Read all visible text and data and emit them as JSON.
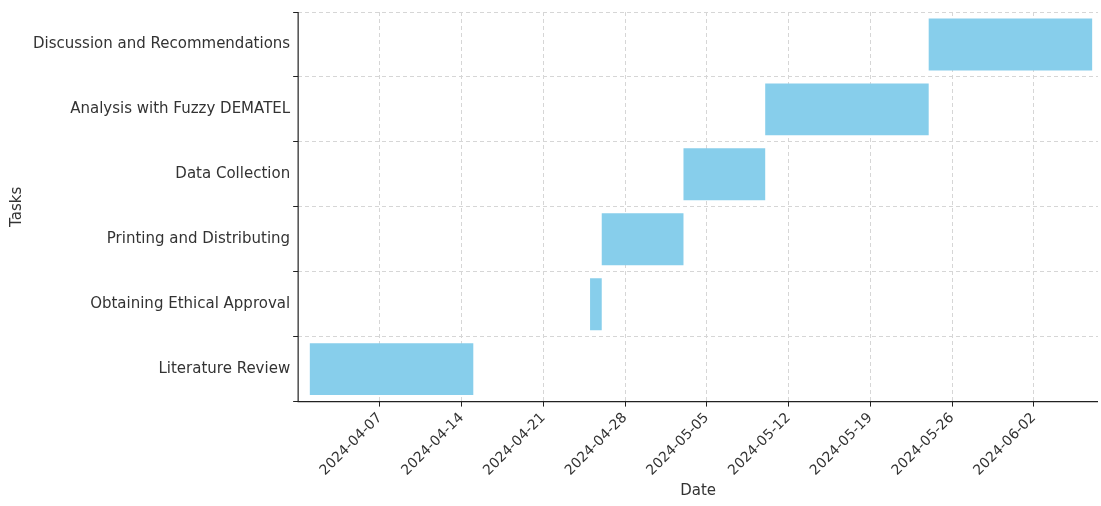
{
  "chart_data": {
    "type": "bar",
    "orientation": "horizontal",
    "xlabel": "Date",
    "ylabel": "Tasks",
    "categories": [
      "Discussion and Recommendations",
      "Analysis with Fuzzy DEMATEL",
      "Data Collection",
      "Printing and Distributing",
      "Obtaining Ethical Approval",
      "Literature Review"
    ],
    "base": [
      19867,
      19853,
      19846,
      19839,
      19838,
      19814
    ],
    "values": [
      14,
      14,
      7,
      7,
      1,
      14
    ],
    "color": "#87ceeb",
    "xlim": [
      "2024-03-31",
      "2024-06-07T12:00"
    ],
    "xticks": [
      "2024-04-07",
      "2024-04-14",
      "2024-04-21",
      "2024-04-28",
      "2024-05-05",
      "2024-05-12",
      "2024-05-19",
      "2024-05-26",
      "2024-06-02"
    ],
    "grid": true,
    "legend": false
  }
}
